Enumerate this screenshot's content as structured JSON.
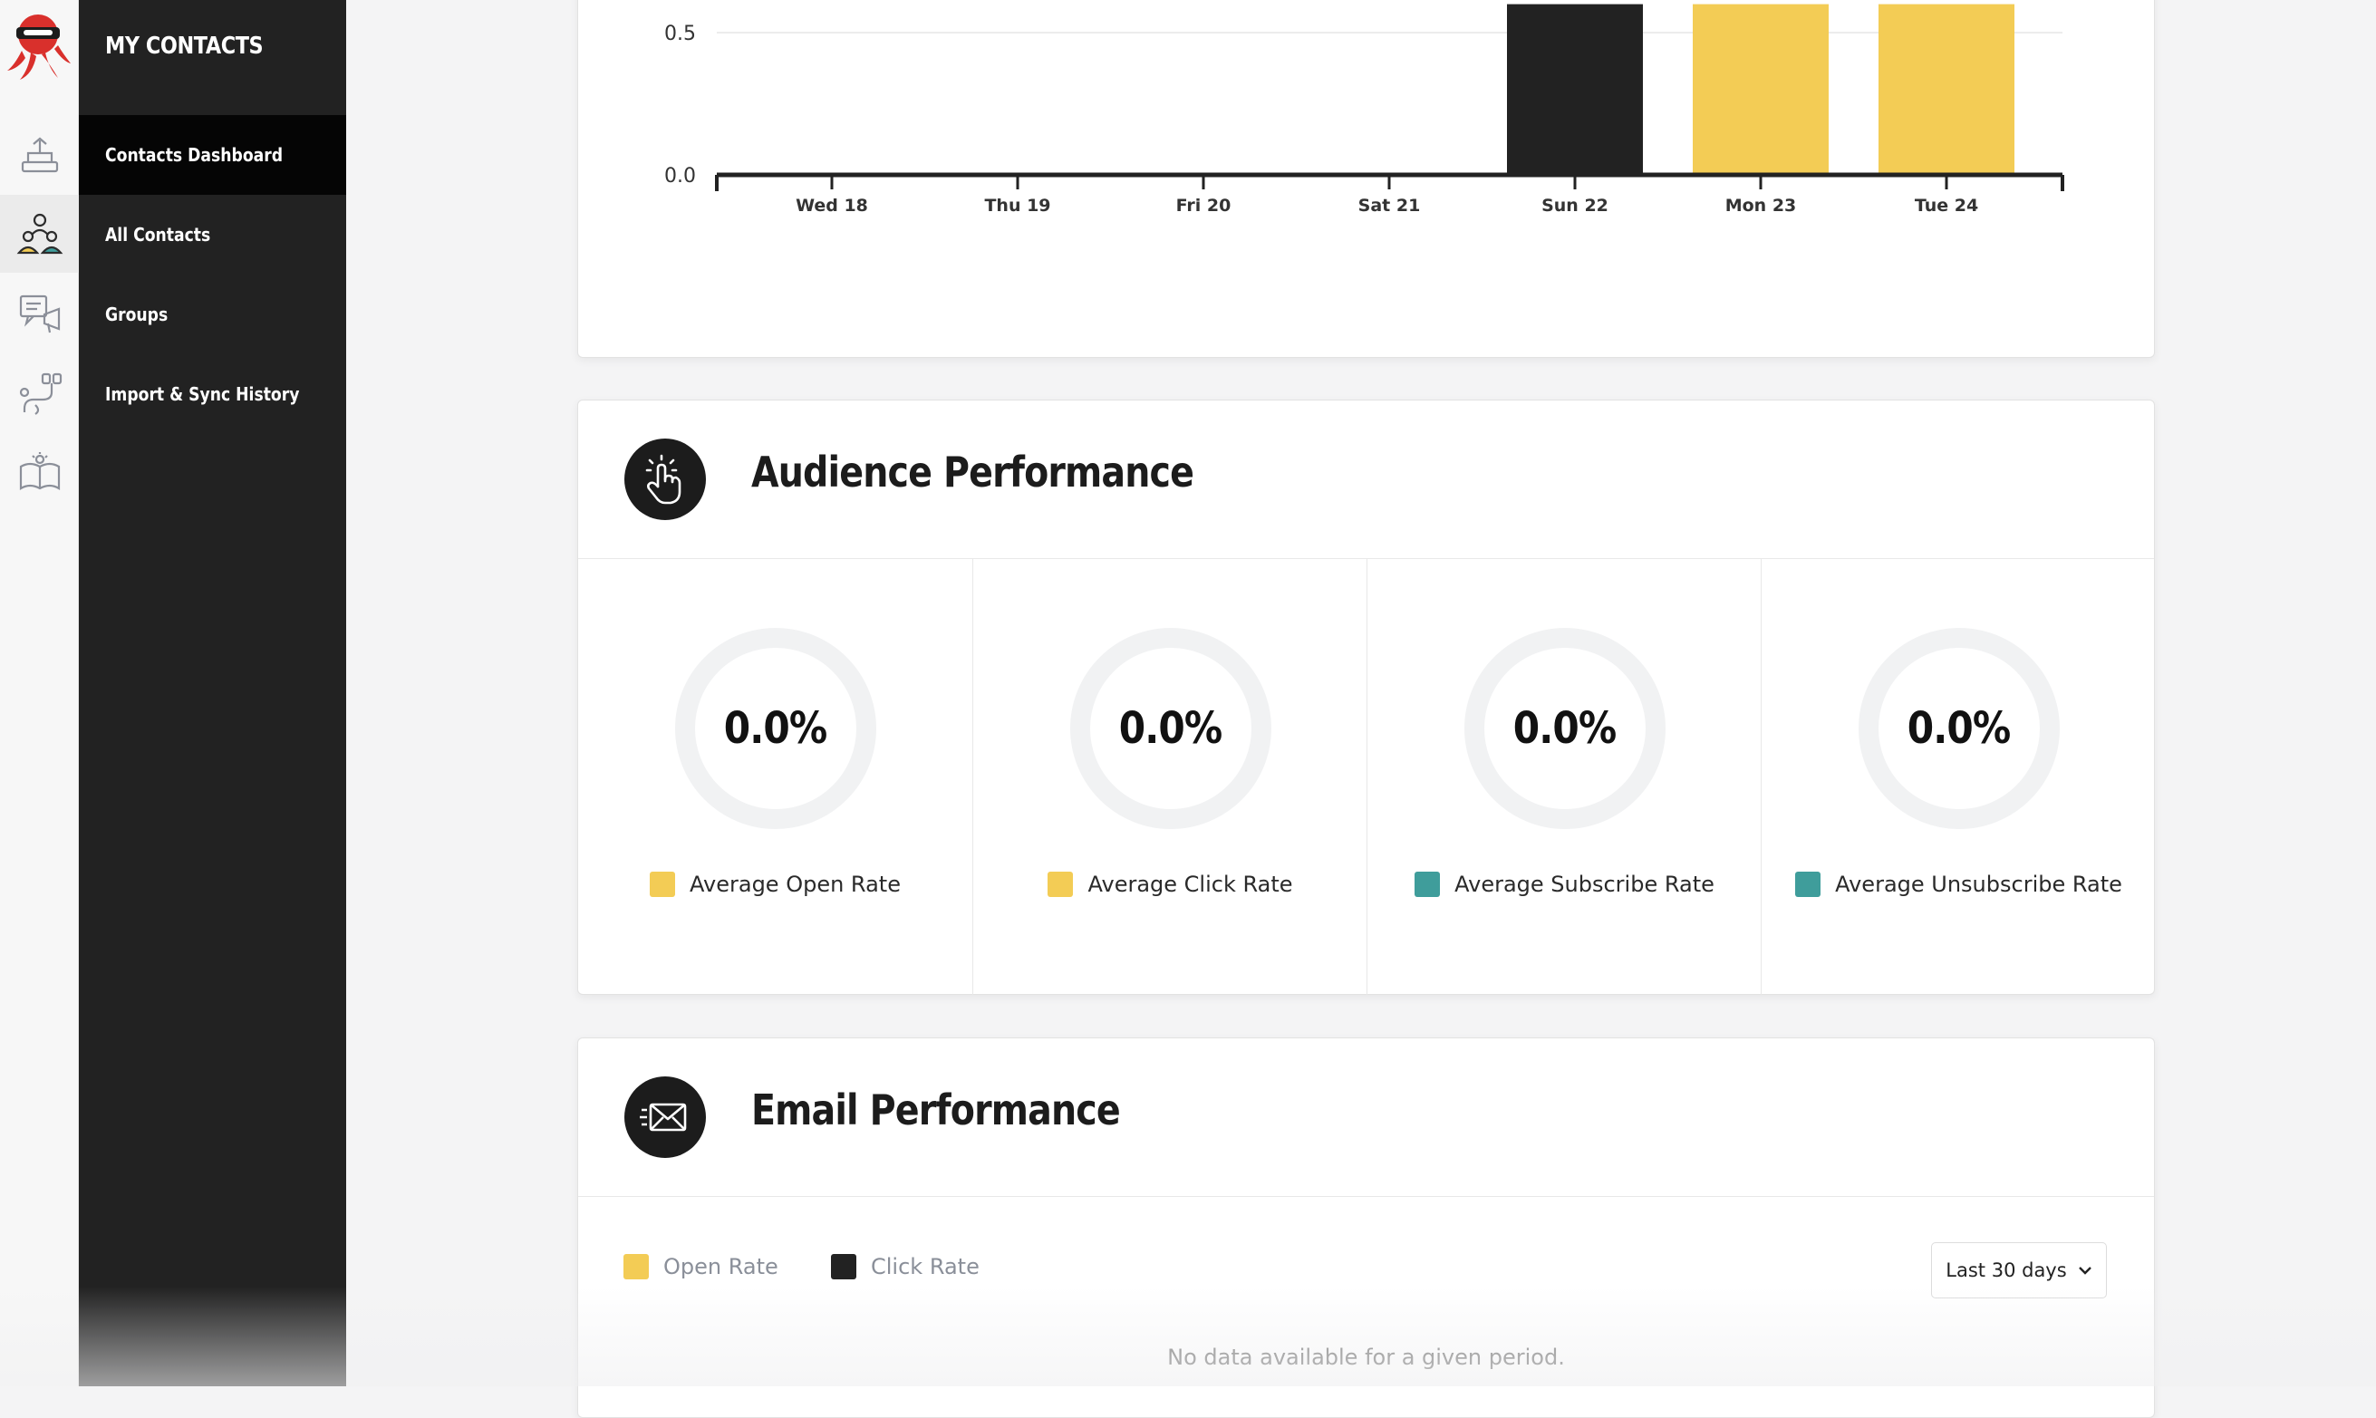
{
  "brand": {
    "logo": "octopus-ninja-logo"
  },
  "rail": {
    "items": [
      {
        "icon": "campaigns-icon",
        "active": false
      },
      {
        "icon": "contacts-people-icon",
        "active": true
      },
      {
        "icon": "marketing-icon",
        "active": false
      },
      {
        "icon": "automation-icon",
        "active": false
      },
      {
        "icon": "learning-book-icon",
        "active": false
      }
    ]
  },
  "sidenav": {
    "title": "MY CONTACTS",
    "items": [
      {
        "label": "Contacts Dashboard",
        "active": true
      },
      {
        "label": "All Contacts",
        "active": false
      },
      {
        "label": "Groups",
        "active": false
      },
      {
        "label": "Import & Sync History",
        "active": false
      }
    ]
  },
  "chart_data": {
    "type": "bar",
    "categories": [
      "Wed 18",
      "Thu 19",
      "Fri 20",
      "Sat 21",
      "Sun 22",
      "Mon 23",
      "Tue 24"
    ],
    "y_ticks": [
      "0.0",
      "0.5"
    ],
    "series": [
      {
        "color": "#222222",
        "values": [
          0,
          0,
          0,
          0,
          0.6,
          0,
          0
        ]
      },
      {
        "color": "#f3cc55",
        "values": [
          0,
          0,
          0,
          0,
          0,
          0.6,
          0.6
        ]
      }
    ],
    "visible_ylim": [
      0,
      0.6
    ],
    "grid": true
  },
  "audience": {
    "title": "Audience Performance",
    "icon": "click-hand-icon",
    "metrics": [
      {
        "value": "0.0%",
        "fraction": 0,
        "label": "Average Open Rate",
        "color": "#f3cc55"
      },
      {
        "value": "0.0%",
        "fraction": 0,
        "label": "Average Click Rate",
        "color": "#f3cc55"
      },
      {
        "value": "0.0%",
        "fraction": 0,
        "label": "Average Subscribe Rate",
        "color": "#3f9d9b"
      },
      {
        "value": "0.0%",
        "fraction": 0,
        "label": "Average Unsubscribe Rate",
        "color": "#3f9d9b"
      }
    ]
  },
  "email": {
    "title": "Email Performance",
    "icon": "envelope-icon",
    "legend": [
      {
        "label": "Open Rate",
        "color": "#f3cc55"
      },
      {
        "label": "Click Rate",
        "color": "#222222"
      }
    ],
    "period": "Last 30 days",
    "empty_message": "No data available for a given period."
  }
}
